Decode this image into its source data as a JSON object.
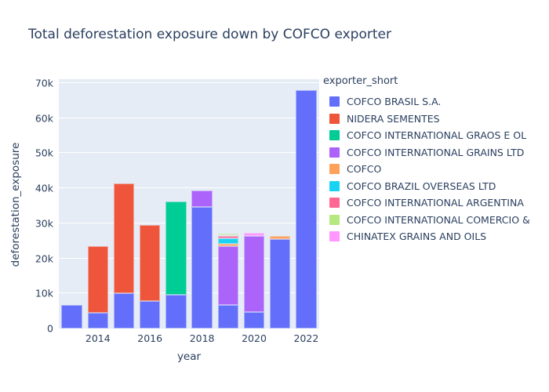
{
  "chart_data": {
    "type": "bar",
    "stacked": true,
    "title": "Total deforestation exposure down by COFCO exporter",
    "xlabel": "year",
    "ylabel": "deforestation_exposure",
    "legend_title": "exporter_short",
    "legend_position": "right",
    "grid": true,
    "plot_bg": "#e5ecf6",
    "grid_color": "#ffffff",
    "text_color": "#2a3f5f",
    "categories": [
      2013,
      2014,
      2015,
      2016,
      2017,
      2018,
      2019,
      2020,
      2021,
      2022
    ],
    "series": [
      {
        "name": "COFCO BRASIL S.A.",
        "color": "#636efa",
        "values": [
          6600,
          4400,
          10100,
          7800,
          9600,
          34600,
          6800,
          4800,
          25500,
          67900
        ]
      },
      {
        "name": "NIDERA SEMENTES",
        "color": "#ef553b",
        "values": [
          0,
          19100,
          31300,
          21800,
          0,
          0,
          0,
          0,
          0,
          0
        ]
      },
      {
        "name": "COFCO INTERNATIONAL GRAOS E OL",
        "color": "#00cc96",
        "values": [
          0,
          0,
          0,
          0,
          26600,
          0,
          0,
          0,
          0,
          0
        ]
      },
      {
        "name": "COFCO INTERNATIONAL GRAINS LTD",
        "color": "#ab63fa",
        "values": [
          0,
          0,
          0,
          0,
          0,
          4700,
          16600,
          21500,
          0,
          0
        ]
      },
      {
        "name": "COFCO",
        "color": "#ffa15a",
        "values": [
          0,
          0,
          0,
          0,
          0,
          0,
          800,
          0,
          800,
          0
        ]
      },
      {
        "name": "COFCO BRAZIL OVERSEAS LTD",
        "color": "#19d3f3",
        "values": [
          0,
          0,
          0,
          0,
          0,
          0,
          1500,
          0,
          0,
          0
        ]
      },
      {
        "name": "COFCO INTERNATIONAL ARGENTINA",
        "color": "#ff6692",
        "values": [
          0,
          0,
          0,
          0,
          0,
          0,
          800,
          0,
          0,
          0
        ]
      },
      {
        "name": "COFCO INTERNATIONAL COMERCIO &",
        "color": "#b6e880",
        "values": [
          0,
          0,
          0,
          0,
          0,
          0,
          200,
          0,
          0,
          0
        ]
      },
      {
        "name": "CHINATEX GRAINS AND OILS",
        "color": "#ff97ff",
        "values": [
          0,
          0,
          0,
          0,
          0,
          0,
          0,
          900,
          0,
          0
        ]
      }
    ],
    "xticks": [
      2014,
      2016,
      2018,
      2020,
      2022
    ],
    "yticks": {
      "values": [
        0,
        10000,
        20000,
        30000,
        40000,
        50000,
        60000,
        70000
      ],
      "labels": [
        "0",
        "10k",
        "20k",
        "30k",
        "40k",
        "50k",
        "60k",
        "70k"
      ]
    },
    "ylim": [
      0,
      71100
    ]
  }
}
